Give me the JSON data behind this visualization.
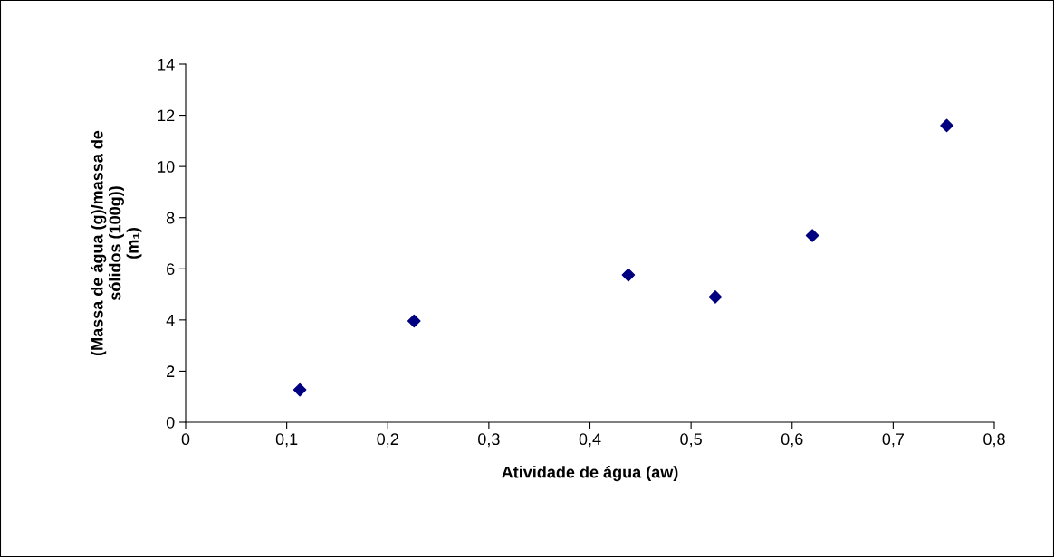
{
  "chart_data": {
    "type": "scatter",
    "xlabel": "Atividade de água (aw)",
    "ylabel": "(Massa de água (g)/massa de\nsólidos (100g))\n(m₁)",
    "x": [
      0.113,
      0.226,
      0.438,
      0.524,
      0.62,
      0.753
    ],
    "series": [
      {
        "color": "#000080",
        "values": [
          1.27,
          3.96,
          5.76,
          4.9,
          7.3,
          11.6
        ]
      }
    ],
    "xlim": [
      0,
      0.8
    ],
    "xticks": [
      {
        "value": 0,
        "label": "0"
      },
      {
        "value": 0.1,
        "label": "0,1"
      },
      {
        "value": 0.2,
        "label": "0,2"
      },
      {
        "value": 0.3,
        "label": "0,3"
      },
      {
        "value": 0.4,
        "label": "0,4"
      },
      {
        "value": 0.5,
        "label": "0,5"
      },
      {
        "value": 0.6,
        "label": "0,6"
      },
      {
        "value": 0.7,
        "label": "0,7"
      },
      {
        "value": 0.8,
        "label": "0,8"
      }
    ],
    "ylim": [
      0,
      14
    ],
    "yticks": [
      0,
      2,
      4,
      6,
      8,
      10,
      12,
      14
    ],
    "marker": "diamond",
    "grid": false,
    "legend": false
  }
}
